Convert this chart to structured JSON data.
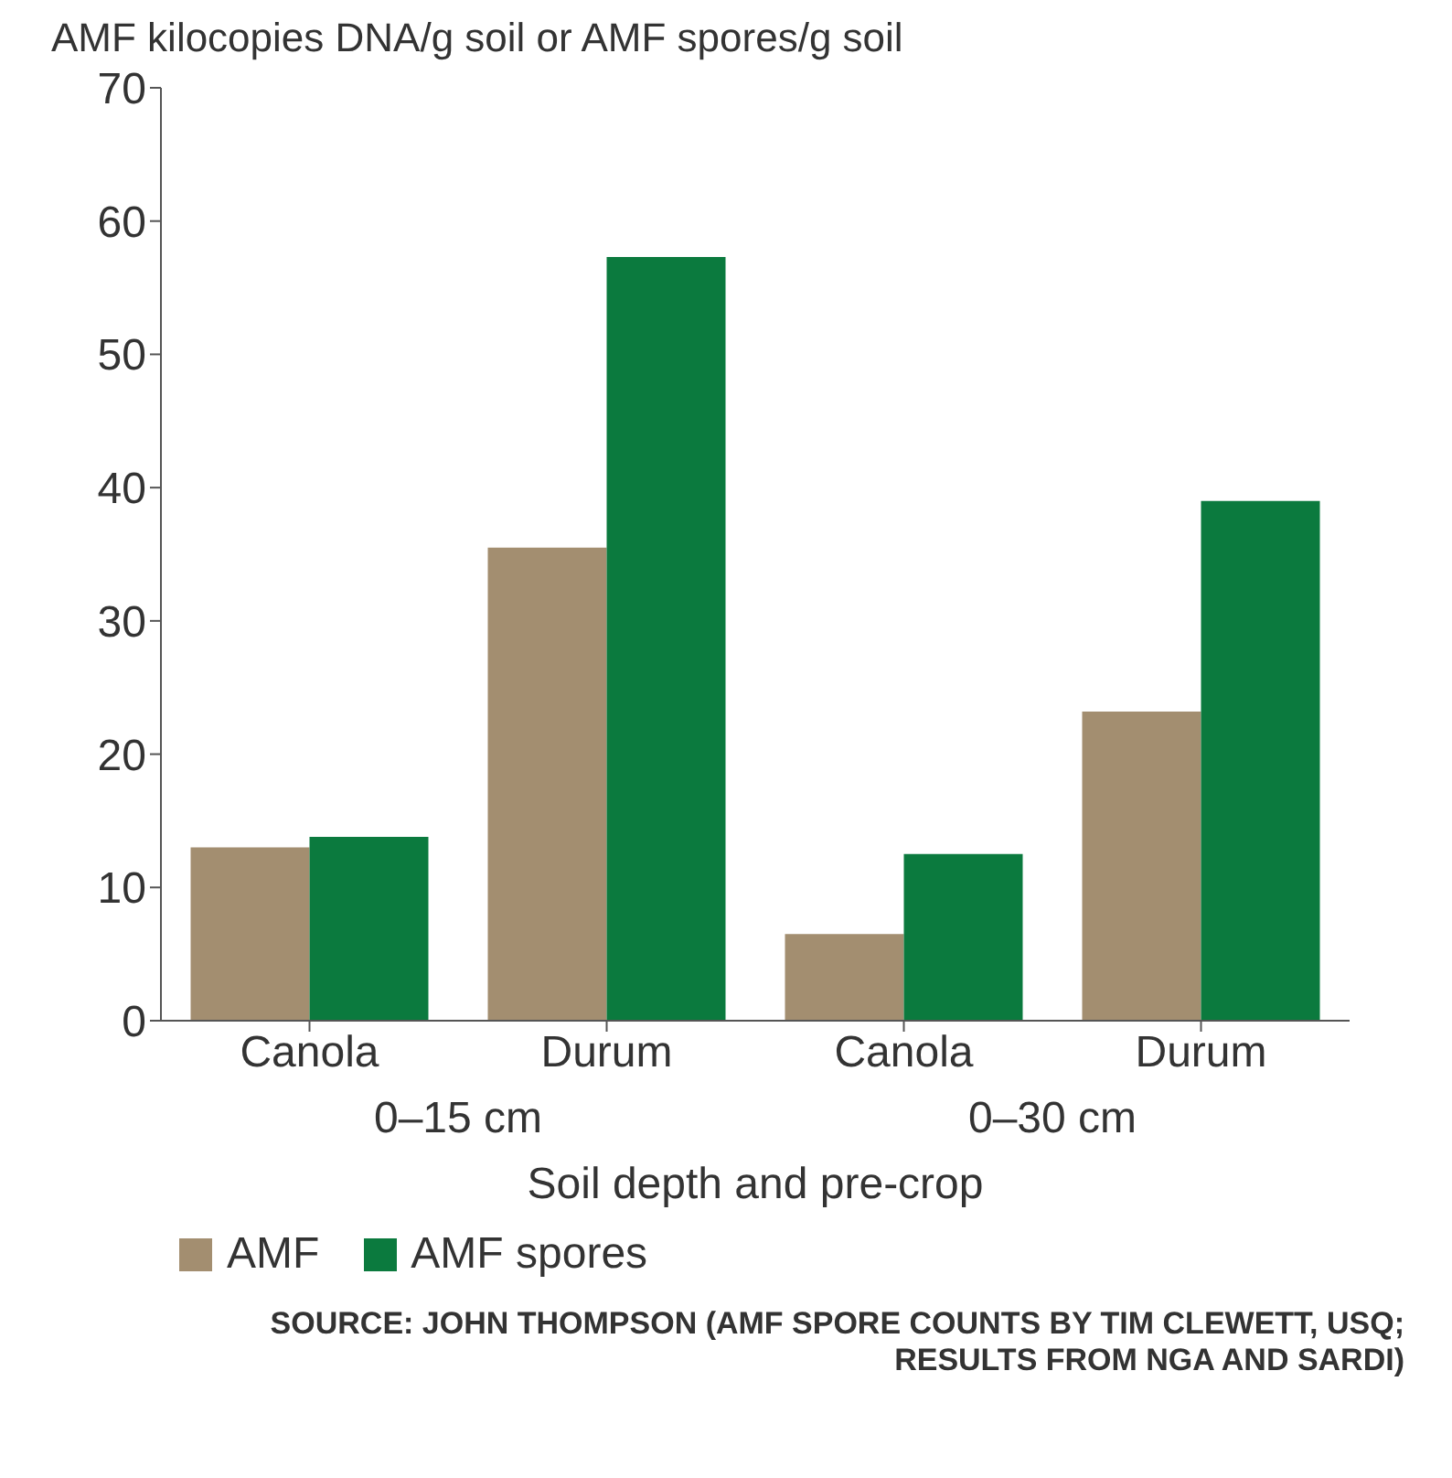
{
  "chart_data": {
    "type": "bar",
    "ylabel": "AMF kilocopies DNA/g soil or AMF spores/g soil",
    "xlabel": "Soil depth and pre-crop",
    "categories": [
      "Canola",
      "Durum",
      "Canola",
      "Durum"
    ],
    "series": [
      {
        "name": "AMF",
        "color": "#a38e70",
        "values": [
          13,
          35.5,
          6.5,
          23.2
        ]
      },
      {
        "name": "AMF spores",
        "color": "#0b7a3e",
        "values": [
          13.8,
          57.3,
          12.5,
          39
        ]
      }
    ],
    "ylim": [
      0,
      70
    ],
    "yticks": [
      0,
      10,
      20,
      30,
      40,
      50,
      60,
      70
    ],
    "grid": false,
    "legend": "bottom",
    "annotations": [
      "0–15 cm",
      "0–30 cm",
      "SOURCE: JOHN THOMPSON (AMF SPORE COUNTS BY TIM CLEWETT, USQ; RESULTS FROM NGA AND SARDI)"
    ]
  }
}
